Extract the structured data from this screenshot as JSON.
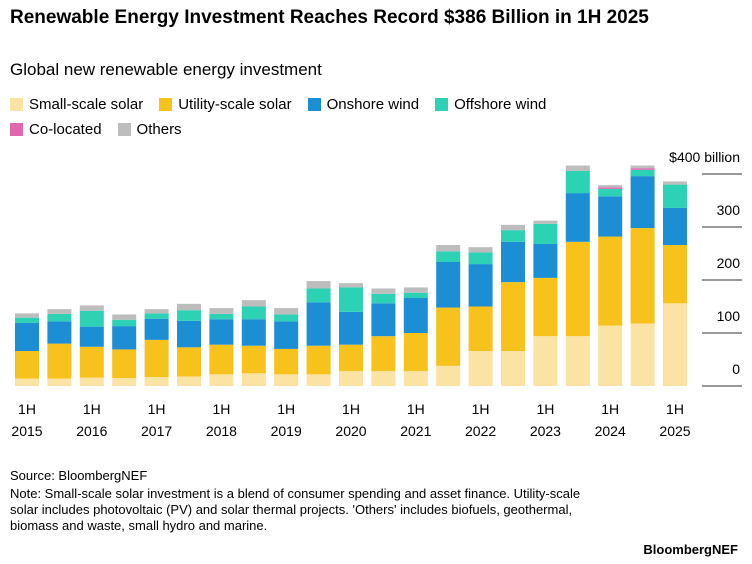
{
  "chart_data": {
    "type": "stacked_bar",
    "title": "Renewable Energy Investment Reaches Record $386 Billion in 1H 2025",
    "subtitle": "Global new renewable energy investment",
    "categories": [
      "1H 2015",
      null,
      "1H 2016",
      null,
      "1H 2017",
      null,
      "1H 2018",
      null,
      "1H 2019",
      null,
      "1H 2020",
      null,
      "1H 2021",
      null,
      "1H 2022",
      null,
      "1H 2023",
      null,
      "1H 2024",
      null,
      "1H 2025"
    ],
    "series": [
      {
        "name": "Small-scale solar",
        "color": "#fbe3a4",
        "values": [
          14,
          14,
          16,
          15,
          17,
          18,
          22,
          24,
          22,
          22,
          28,
          28,
          28,
          38,
          66,
          66,
          94,
          94,
          114,
          118,
          156
        ]
      },
      {
        "name": "Utility-scale solar",
        "color": "#f8c21c",
        "values": [
          52,
          66,
          58,
          54,
          70,
          55,
          56,
          52,
          48,
          54,
          50,
          66,
          72,
          110,
          84,
          130,
          110,
          178,
          168,
          180,
          110
        ]
      },
      {
        "name": "Onshore wind",
        "color": "#1c8ed4",
        "values": [
          53,
          42,
          38,
          44,
          40,
          50,
          48,
          50,
          52,
          82,
          62,
          62,
          66,
          86,
          80,
          76,
          64,
          92,
          76,
          98,
          70
        ]
      },
      {
        "name": "Offshore wind",
        "color": "#2dd1b4",
        "values": [
          10,
          14,
          30,
          12,
          10,
          20,
          10,
          24,
          13,
          26,
          46,
          18,
          10,
          20,
          22,
          22,
          38,
          42,
          14,
          12,
          44
        ]
      },
      {
        "name": "Co-located",
        "color": "#e066ad",
        "values": [
          0,
          0,
          0,
          0,
          0,
          0,
          0,
          0,
          0,
          0,
          0,
          0,
          0,
          0,
          0,
          0,
          0,
          0,
          3,
          3,
          0
        ]
      },
      {
        "name": "Others",
        "color": "#bdbdbd",
        "values": [
          8,
          9,
          10,
          10,
          8,
          12,
          11,
          12,
          12,
          14,
          8,
          10,
          10,
          12,
          10,
          10,
          6,
          10,
          4,
          5,
          6
        ]
      }
    ],
    "ylim": [
      0,
      400
    ],
    "yticks": [
      0,
      100,
      200,
      300,
      {
        "value": 400,
        "label": "$400 billion"
      }
    ],
    "source": "Source: BloombergNEF",
    "note": "Note: Small-scale solar investment is a blend of consumer spending and asset finance. Utility-scale solar includes photovoltaic (PV) and solar thermal projects. 'Others' includes biofuels, geothermal, biomass and waste, small hydro and marine.",
    "brand": "BloombergNEF"
  }
}
